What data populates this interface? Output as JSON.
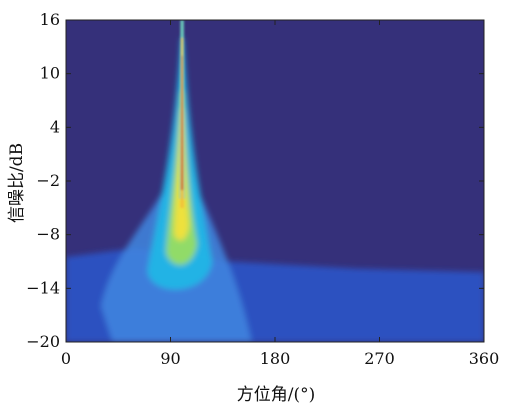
{
  "chart_data": {
    "type": "heatmap",
    "title": "",
    "xlabel": "方位角/(°)",
    "ylabel": "信噪比/dB",
    "xlim": [
      0,
      360
    ],
    "ylim": [
      -20,
      16
    ],
    "x_ticks": [
      0,
      90,
      180,
      270,
      360
    ],
    "y_ticks": [
      -20,
      -14,
      -8,
      -2,
      4,
      10,
      16
    ],
    "x_tick_labels": [
      "0",
      "90",
      "180",
      "270",
      "360"
    ],
    "y_tick_labels": [
      "−20",
      "−14",
      "−8",
      "−2",
      "4",
      "10",
      "16"
    ],
    "colormap": "parula",
    "colors": {
      "background": "#35307a",
      "low": "#2a52c4",
      "mid": "#22b6e6",
      "high": "#f3e23a",
      "peak": "#c8461c"
    },
    "features": {
      "peak_azimuth": 100,
      "ridge_azimuth_range": [
        97,
        103
      ],
      "cone_snr_range": [
        -20,
        16
      ],
      "background_noise_floor_snr": -10
    },
    "grid": false,
    "legend": "none"
  }
}
